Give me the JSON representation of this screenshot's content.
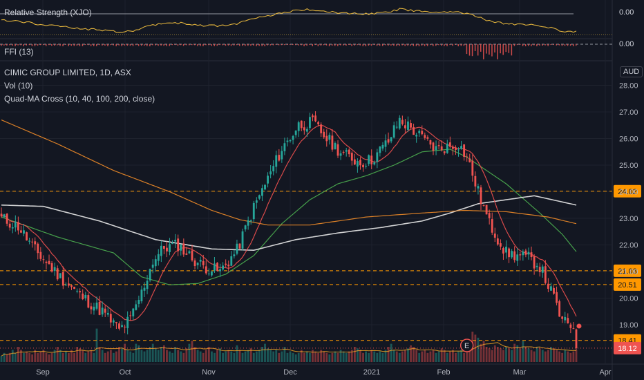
{
  "indicators": {
    "rs_label": "Relative Strength (XJO)",
    "rs_value": "0.00",
    "ffi_label": "FFI (13)",
    "ffi_value": "0.00"
  },
  "main": {
    "title": "CIMIC GROUP LIMITED, 1D, ASX",
    "vol_label": "Vol (10)",
    "ma_label": "Quad-MA Cross (10, 40, 100, 200, close)",
    "currency": "AUD",
    "earnings_marker": "E"
  },
  "colors": {
    "background": "#131722",
    "up": "#26a69a",
    "down": "#ef5350",
    "ma10": "#f0504f",
    "ma40": "#4caf50",
    "ma100": "#e8e8e8",
    "ma200": "#f28c28",
    "rs_line": "#e0b23c",
    "level": "#ff9800"
  },
  "chart_data": {
    "type": "line",
    "title": "CIMIC GROUP LIMITED, 1D, ASX",
    "ylabel": "AUD",
    "ylim": [
      17.65,
      28.3
    ],
    "y_ticks": [
      28.0,
      27.0,
      26.0,
      25.0,
      24.0,
      23.0,
      22.0,
      21.0,
      20.0,
      19.0
    ],
    "x_tick_labels": [
      "Sep",
      "Oct",
      "Nov",
      "Dec",
      "2021",
      "Feb",
      "Mar",
      "Apr"
    ],
    "horizontal_levels": [
      24.02,
      21.03,
      20.51,
      18.41
    ],
    "last_price": 18.12,
    "series": [
      {
        "values": [
          [
            0,
            23.0
          ],
          [
            6,
            22.7
          ],
          [
            12,
            21.8
          ],
          [
            20,
            20.9
          ],
          [
            28,
            20.1
          ],
          [
            36,
            19.5
          ],
          [
            42,
            18.8
          ],
          [
            46,
            19.2
          ],
          [
            50,
            20.2
          ],
          [
            54,
            21.4
          ],
          [
            58,
            21.9
          ],
          [
            63,
            22.0
          ],
          [
            68,
            21.5
          ],
          [
            72,
            21.2
          ],
          [
            78,
            21.0
          ],
          [
            84,
            21.8
          ],
          [
            90,
            23.4
          ],
          [
            95,
            24.5
          ],
          [
            100,
            25.6
          ],
          [
            106,
            26.5
          ],
          [
            111,
            26.6
          ],
          [
            116,
            26.0
          ],
          [
            122,
            25.4
          ],
          [
            128,
            25.1
          ],
          [
            132,
            25.2
          ],
          [
            138,
            25.9
          ],
          [
            142,
            26.7
          ],
          [
            146,
            26.4
          ],
          [
            150,
            26.0
          ],
          [
            155,
            25.6
          ],
          [
            160,
            25.7
          ],
          [
            163,
            25.8
          ],
          [
            166,
            25.3
          ],
          [
            170,
            24.0
          ],
          [
            174,
            22.8
          ],
          [
            180,
            21.7
          ],
          [
            184,
            21.6
          ],
          [
            188,
            21.5
          ],
          [
            192,
            21.2
          ],
          [
            197,
            20.0
          ],
          [
            200,
            19.1
          ],
          [
            205,
            18.9
          ]
        ]
      },
      {
        "values": [
          [
            0,
            23.05
          ],
          [
            20,
            22.3
          ],
          [
            40,
            21.7
          ],
          [
            50,
            20.8
          ],
          [
            60,
            20.5
          ],
          [
            70,
            20.55
          ],
          [
            80,
            20.9
          ],
          [
            90,
            21.6
          ],
          [
            100,
            22.8
          ],
          [
            110,
            23.7
          ],
          [
            120,
            24.3
          ],
          [
            130,
            24.6
          ],
          [
            140,
            25.0
          ],
          [
            150,
            25.5
          ],
          [
            160,
            25.6
          ],
          [
            166,
            25.3
          ],
          [
            180,
            24.3
          ],
          [
            192,
            23.2
          ],
          [
            200,
            22.4
          ],
          [
            205,
            21.75
          ]
        ]
      },
      {
        "values": [
          [
            0,
            23.5
          ],
          [
            15,
            23.45
          ],
          [
            35,
            22.9
          ],
          [
            55,
            22.2
          ],
          [
            75,
            21.85
          ],
          [
            90,
            21.8
          ],
          [
            105,
            22.2
          ],
          [
            120,
            22.45
          ],
          [
            135,
            22.65
          ],
          [
            150,
            22.9
          ],
          [
            160,
            23.2
          ],
          [
            170,
            23.55
          ],
          [
            180,
            23.7
          ],
          [
            190,
            23.85
          ],
          [
            205,
            23.5
          ]
        ]
      },
      {
        "values": [
          [
            0,
            26.7
          ],
          [
            20,
            25.8
          ],
          [
            40,
            24.8
          ],
          [
            60,
            24.0
          ],
          [
            75,
            23.3
          ],
          [
            85,
            22.95
          ],
          [
            95,
            22.75
          ],
          [
            110,
            22.75
          ],
          [
            130,
            23.05
          ],
          [
            150,
            23.2
          ],
          [
            165,
            23.3
          ],
          [
            180,
            23.25
          ],
          [
            195,
            23.05
          ],
          [
            205,
            22.8
          ]
        ]
      }
    ],
    "volume_relative": [
      0.2,
      0.3,
      0.25,
      0.3,
      0.4,
      0.3,
      0.5,
      0.4,
      0.3,
      0.35,
      0.3,
      0.25,
      0.4,
      0.3,
      0.35,
      0.4,
      0.3,
      0.25,
      0.3,
      0.4,
      0.5,
      0.4,
      0.3,
      0.35,
      0.3,
      0.4,
      0.3,
      0.5,
      0.45,
      0.4,
      0.3,
      0.35,
      0.4,
      0.3,
      1.1,
      0.5,
      0.4,
      0.3,
      0.35,
      0.4,
      0.3,
      0.35,
      0.5,
      0.45,
      0.6,
      0.4,
      0.35,
      0.3,
      0.6,
      0.55,
      0.4,
      0.35,
      0.4,
      0.5,
      0.6,
      0.45,
      0.4,
      0.5,
      0.55,
      0.4,
      0.35,
      0.3,
      0.5,
      0.4,
      0.35,
      0.3,
      0.45,
      0.6,
      0.7,
      0.5,
      0.4,
      0.35,
      0.3,
      0.4,
      0.5,
      0.35,
      0.3,
      0.4,
      0.45,
      0.3,
      0.35,
      0.4,
      0.35,
      0.3,
      0.55,
      0.4,
      0.3,
      0.35,
      0.4,
      0.45,
      0.3,
      0.35,
      0.4,
      0.5,
      0.6,
      0.45,
      0.4,
      0.35,
      0.4,
      0.3,
      0.35,
      0.5,
      0.3,
      0.35,
      0.3,
      0.25,
      0.3,
      0.4,
      0.3,
      0.35,
      0.3,
      0.4,
      0.35,
      0.3,
      0.4,
      0.35,
      0.3,
      0.25,
      0.3,
      0.35,
      0.3,
      0.4,
      0.35,
      0.3,
      0.35,
      0.4,
      0.5,
      0.45,
      0.4,
      0.3,
      0.35,
      0.3,
      0.4,
      0.35,
      0.3,
      0.35,
      0.3,
      0.4,
      0.5,
      0.6,
      0.4,
      0.35,
      0.3,
      0.35,
      0.4,
      0.45,
      0.55,
      0.5,
      0.4,
      0.3,
      0.35,
      0.4,
      0.3,
      0.35,
      0.4,
      0.3,
      0.35,
      0.45,
      0.4,
      0.3,
      0.35,
      0.4,
      0.3,
      0.35,
      0.4,
      0.3,
      0.35,
      0.4,
      1.0,
      0.9,
      0.8,
      0.6,
      0.7,
      0.5,
      0.45,
      0.4,
      0.55,
      0.5,
      0.45,
      0.4,
      0.5,
      0.45,
      0.4,
      0.6,
      0.55,
      0.45,
      0.7,
      0.5,
      0.45,
      0.4,
      0.35,
      0.5,
      0.45,
      0.4,
      0.35,
      0.4,
      0.5,
      0.45,
      0.4,
      0.35,
      0.3,
      0.4,
      0.35,
      0.3,
      0.35,
      0.4,
      0.35,
      0.3,
      0.35,
      0.4,
      0.5,
      0.4
    ]
  }
}
